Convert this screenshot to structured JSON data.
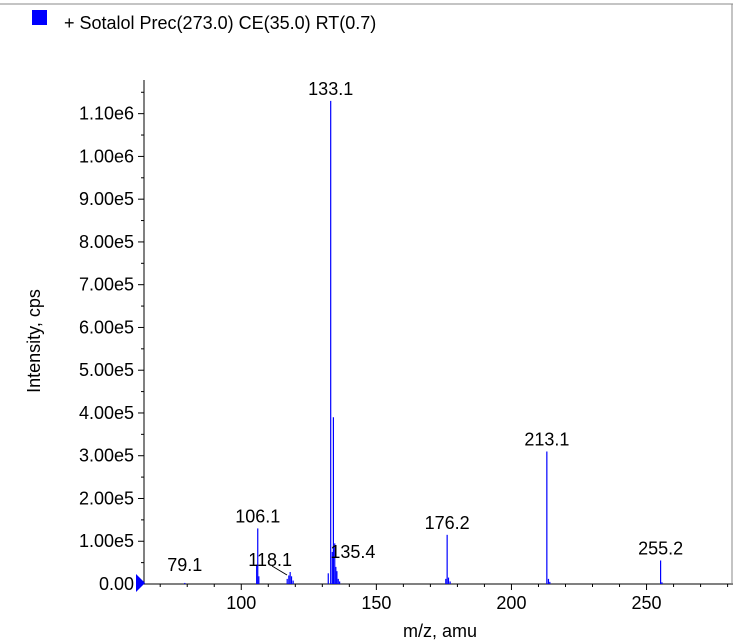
{
  "legend": {
    "label": "+ Sotalol Prec(273.0) CE(35.0) RT(0.7)",
    "color": "#0000ff"
  },
  "chart_data": {
    "type": "bar",
    "series": [
      {
        "values": [
          [
            79.1,
            2500
          ],
          [
            105.7,
            45000
          ],
          [
            106.1,
            130000
          ],
          [
            106.5,
            18000
          ],
          [
            117.0,
            12000
          ],
          [
            117.6,
            20000
          ],
          [
            118.1,
            28000
          ],
          [
            118.6,
            18000
          ],
          [
            119.2,
            8000
          ],
          [
            132.2,
            25000
          ],
          [
            133.1,
            1130000
          ],
          [
            133.7,
            75000
          ],
          [
            134.1,
            390000
          ],
          [
            134.6,
            95000
          ],
          [
            135.0,
            40000
          ],
          [
            135.4,
            30000
          ],
          [
            135.9,
            12000
          ],
          [
            136.4,
            6000
          ],
          [
            175.7,
            12000
          ],
          [
            176.2,
            115000
          ],
          [
            176.7,
            15000
          ],
          [
            177.3,
            6000
          ],
          [
            213.1,
            310000
          ],
          [
            213.7,
            12000
          ],
          [
            214.2,
            5000
          ],
          [
            255.2,
            55000
          ],
          [
            255.7,
            4000
          ]
        ]
      }
    ],
    "peak_labels": [
      "79.1",
      "106.1",
      "118.1",
      "133.1",
      "135.4",
      "176.2",
      "213.1",
      "255.2"
    ],
    "peak_label_x": [
      79.1,
      106.1,
      118.1,
      133.1,
      135.4,
      176.2,
      213.1,
      255.2
    ],
    "xlabel": "m/z, amu",
    "ylabel": "Intensity, cps",
    "xlim": [
      64,
      282
    ],
    "ylim": [
      0,
      1160000
    ],
    "x_ticks": [
      "100",
      "150",
      "200",
      "250"
    ],
    "x_tick_values": [
      100,
      150,
      200,
      250
    ],
    "y_ticks": [
      "0.00",
      "1.00e5",
      "2.00e5",
      "3.00e5",
      "4.00e5",
      "5.00e5",
      "6.00e5",
      "7.00e5",
      "8.00e5",
      "9.00e5",
      "1.00e6",
      "1.10e6"
    ],
    "y_tick_values": [
      0,
      100000,
      200000,
      300000,
      400000,
      500000,
      600000,
      700000,
      800000,
      900000,
      1000000,
      1100000
    ],
    "grid": false,
    "legend_position": "top-left"
  }
}
